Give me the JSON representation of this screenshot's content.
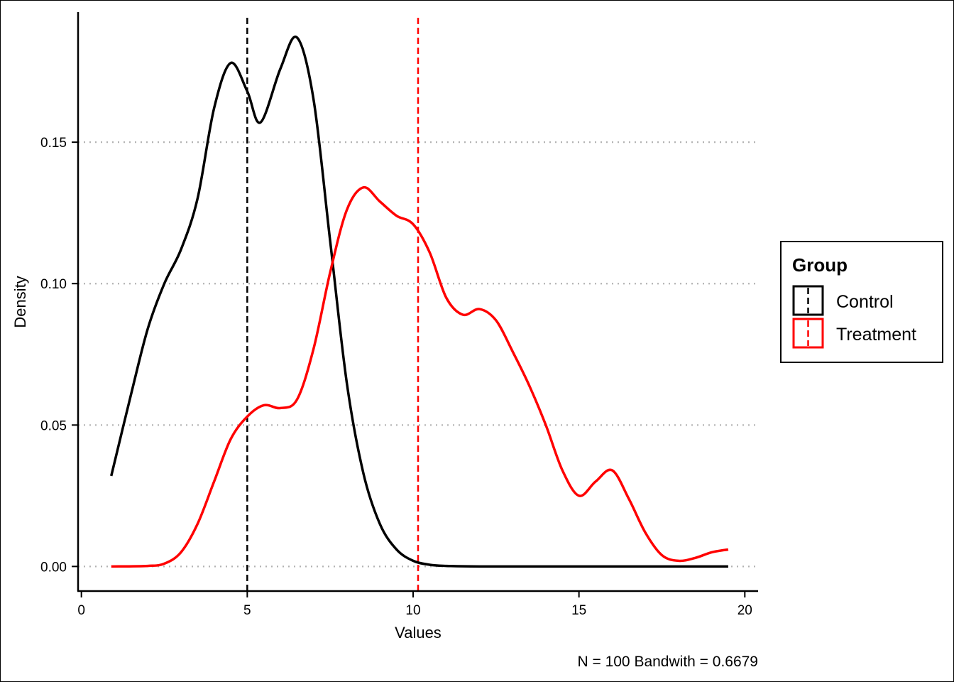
{
  "chart_data": {
    "type": "line",
    "xlabel": "Values",
    "ylabel": "Density",
    "xlim": [
      -0.1,
      20.4
    ],
    "ylim": [
      -0.0087,
      0.196
    ],
    "x_ticks": [
      0,
      5,
      10,
      15,
      20
    ],
    "y_ticks": [
      0.0,
      0.05,
      0.1,
      0.15
    ],
    "x_tick_labels": [
      "0",
      "5",
      "10",
      "15",
      "20"
    ],
    "y_tick_labels": [
      "0.00",
      "0.05",
      "0.10",
      "0.15"
    ],
    "grid": "horizontal dotted",
    "caption": "N = 100  Bandwith = 0.6679",
    "legend": {
      "title": "Group",
      "position": "right"
    },
    "series": [
      {
        "name": "Control",
        "color": "#000000",
        "x": [
          0.9,
          1.5,
          2.0,
          2.5,
          3.0,
          3.5,
          4.0,
          4.5,
          5.0,
          5.4,
          6.0,
          6.5,
          7.0,
          7.5,
          8.0,
          8.5,
          9.0,
          9.5,
          10.0,
          10.5,
          11.0,
          12.0,
          14.0,
          16.0,
          19.5
        ],
        "values": [
          0.032,
          0.061,
          0.084,
          0.1,
          0.112,
          0.13,
          0.162,
          0.178,
          0.168,
          0.157,
          0.176,
          0.187,
          0.165,
          0.115,
          0.065,
          0.033,
          0.015,
          0.006,
          0.002,
          0.0006,
          0.0002,
          0.0,
          0.0,
          0.0,
          0.0
        ]
      },
      {
        "name": "Treatment",
        "color": "#ff0000",
        "x": [
          0.9,
          2.0,
          2.5,
          3.0,
          3.5,
          4.0,
          4.5,
          5.0,
          5.5,
          6.0,
          6.5,
          7.0,
          7.5,
          8.0,
          8.5,
          9.0,
          9.5,
          10.0,
          10.5,
          11.0,
          11.5,
          12.0,
          12.5,
          13.0,
          13.5,
          14.0,
          14.5,
          15.0,
          15.5,
          16.0,
          16.5,
          17.0,
          17.5,
          18.0,
          18.5,
          19.0,
          19.5
        ],
        "values": [
          0.0,
          0.0002,
          0.001,
          0.005,
          0.015,
          0.03,
          0.045,
          0.053,
          0.057,
          0.056,
          0.059,
          0.077,
          0.104,
          0.126,
          0.134,
          0.129,
          0.124,
          0.121,
          0.111,
          0.095,
          0.089,
          0.091,
          0.087,
          0.076,
          0.064,
          0.05,
          0.034,
          0.025,
          0.03,
          0.034,
          0.024,
          0.012,
          0.004,
          0.002,
          0.003,
          0.005,
          0.006
        ]
      }
    ],
    "vlines": [
      {
        "series": "Control",
        "x": 5.0,
        "color": "#000000",
        "style": "dashed"
      },
      {
        "series": "Treatment",
        "x": 10.15,
        "color": "#ff0000",
        "style": "dashed"
      }
    ]
  }
}
